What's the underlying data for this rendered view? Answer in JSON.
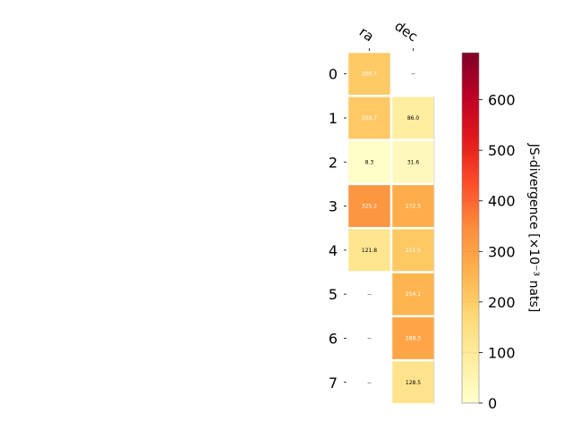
{
  "chart_data": {
    "type": "heatmap",
    "columns": [
      "ra",
      "dec"
    ],
    "rows": [
      "0",
      "1",
      "2",
      "3",
      "4",
      "5",
      "6",
      "7"
    ],
    "values": [
      [
        206.7,
        null
      ],
      [
        209.7,
        86.0
      ],
      [
        8.3,
        31.6
      ],
      [
        325.2,
        272.5
      ],
      [
        121.8,
        211.5
      ],
      [
        null,
        254.1
      ],
      [
        null,
        288.3
      ],
      [
        null,
        128.5
      ]
    ],
    "cell_labels": [
      [
        "206.7",
        "--"
      ],
      [
        "209.7",
        "86.0"
      ],
      [
        "8.3",
        "31.6"
      ],
      [
        "325.2",
        "272.5"
      ],
      [
        "121.8",
        "211.5"
      ],
      [
        "--",
        "254.1"
      ],
      [
        "--",
        "288.3"
      ],
      [
        "--",
        "128.5"
      ]
    ],
    "colorbar": {
      "label": "JS-divergence [×10⁻³ nats]",
      "min": 0,
      "max": 693,
      "ticks": [
        "0",
        "100",
        "200",
        "300",
        "400",
        "500",
        "600"
      ],
      "tick_values": [
        0,
        100,
        200,
        300,
        400,
        500,
        600
      ],
      "colormap": "YlOrRd"
    },
    "grid": false
  }
}
